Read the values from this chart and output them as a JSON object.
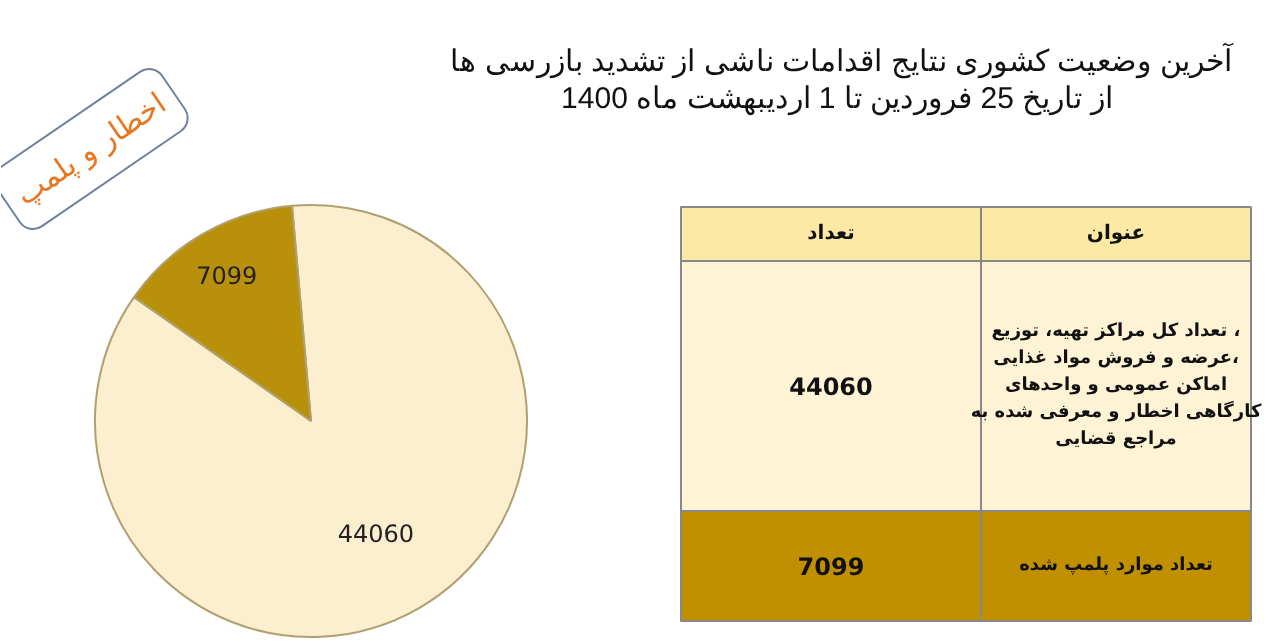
{
  "chart_data": {
    "type": "pie",
    "title": "آخرین وضعیت کشوری نتایج اقدامات ناشی از تشدید بازرسی ها\nاز تاریخ  25 فروردین تا 1 اردیبهشت ماه 1400",
    "categories": [
      null,
      null
    ],
    "values": [
      44060,
      7099
    ],
    "colors": [
      "#fcefcf",
      "#b8900a"
    ],
    "data_labels": true,
    "annotations": [
      "اخطار و پلمپ",
      "تعداد",
      "عنوان",
      "تعداد کل مراکز تهیه، توزیع ،\nعرضه و فروش مواد غذایی،\nاماکن عمومی و واحدهای\nکارگاهی اخطار و معرفی شده به\nمراجع قضایی",
      "تعداد موارد پلمپ شده",
      "44060",
      "7099"
    ]
  }
}
